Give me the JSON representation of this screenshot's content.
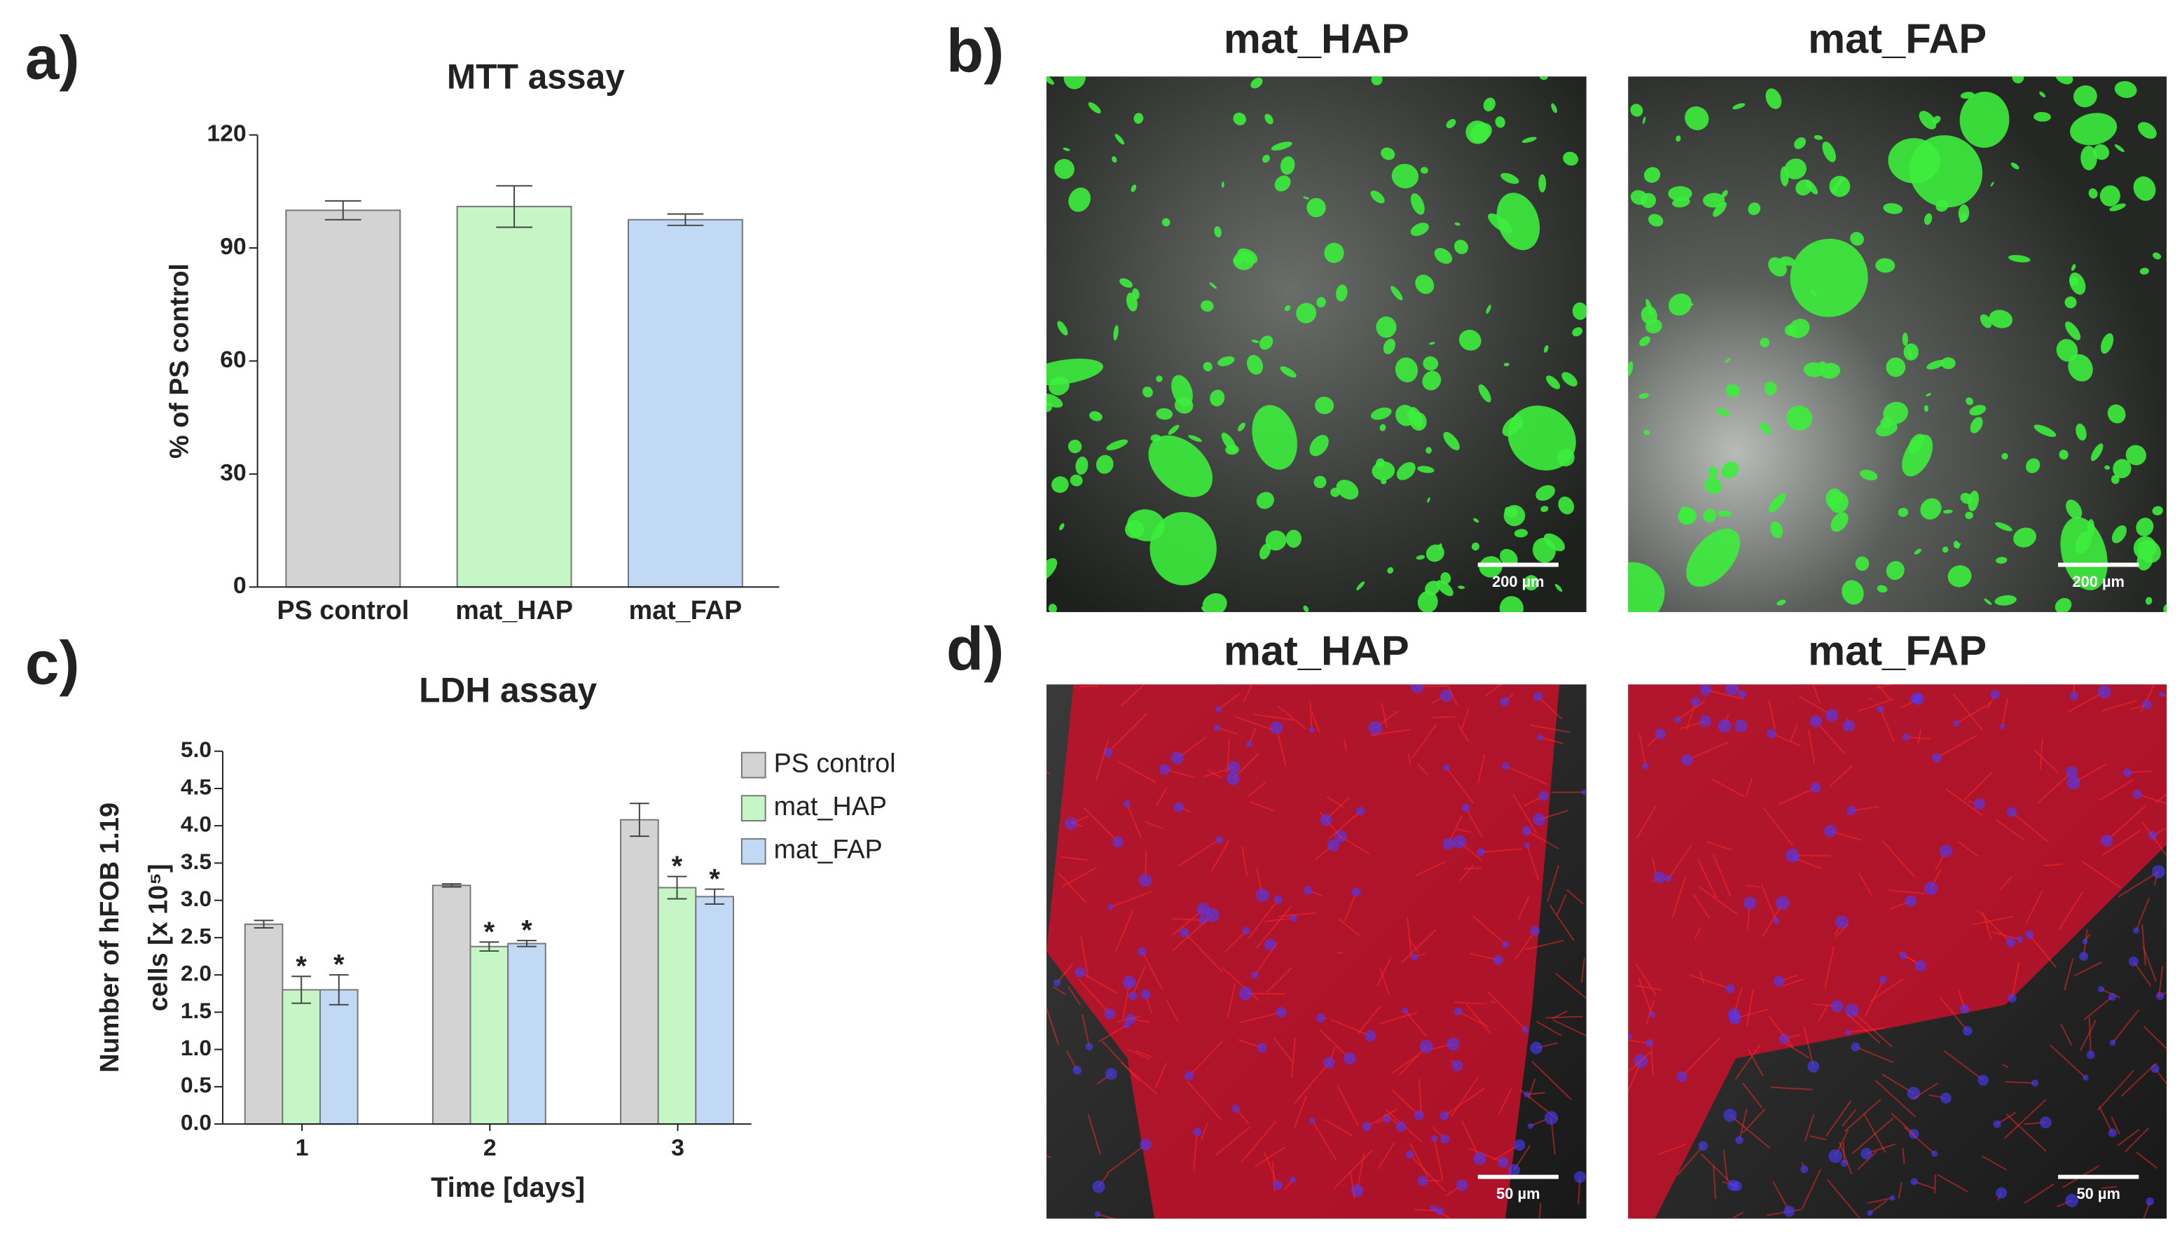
{
  "figure": {
    "panel_labels": [
      "a)",
      "b)",
      "c)",
      "d)"
    ],
    "micrographs": [
      {
        "title": "mat_HAP",
        "scale_bar": "200 µm"
      },
      {
        "title": "mat_FAP",
        "scale_bar": "200 µm"
      },
      {
        "title": "mat_HAP",
        "scale_bar": "50 µm"
      },
      {
        "title": "mat_FAP",
        "scale_bar": "50 µm"
      }
    ]
  },
  "chart_data": [
    {
      "type": "bar",
      "title": "MTT assay",
      "ylabel": "% of PS control",
      "categories": [
        "PS control",
        "mat_HAP",
        "mat_FAP"
      ],
      "values": [
        100,
        101,
        97.5
      ],
      "errors": [
        2.5,
        5.5,
        1.5
      ],
      "colors": [
        "#d3d3d3",
        "#c6f5c6",
        "#c2d9f5"
      ],
      "ylim": [
        0,
        120
      ],
      "yticks": [
        0,
        30,
        60,
        90,
        120
      ]
    },
    {
      "type": "grouped_bar",
      "title": "LDH assay",
      "ylabel": [
        "Number of hFOB 1.19",
        "cells [x 10⁵]"
      ],
      "xlabel": "Time [days]",
      "categories": [
        "1",
        "2",
        "3"
      ],
      "series": [
        {
          "name": "PS control",
          "color": "#d3d3d3",
          "values": [
            2.68,
            3.2,
            4.08
          ],
          "errors": [
            0.05,
            0.02,
            0.22
          ]
        },
        {
          "name": "mat_HAP",
          "color": "#c6f5c6",
          "values": [
            1.8,
            2.38,
            3.17
          ],
          "errors": [
            0.18,
            0.06,
            0.15
          ],
          "annotation": "*"
        },
        {
          "name": "mat_FAP",
          "color": "#c2d9f5",
          "values": [
            1.8,
            2.42,
            3.05
          ],
          "errors": [
            0.2,
            0.04,
            0.1
          ],
          "annotation": "*"
        }
      ],
      "ylim": [
        0,
        5
      ],
      "yticks": [
        {
          "value": 0,
          "label": "0.0"
        },
        {
          "value": 0.5,
          "label": "0.5"
        },
        {
          "value": 1,
          "label": "1.0"
        },
        {
          "value": 1.5,
          "label": "1.5"
        },
        {
          "value": 2,
          "label": "2.0"
        },
        {
          "value": 2.5,
          "label": "2.5"
        },
        {
          "value": 3,
          "label": "3.0"
        },
        {
          "value": 3.5,
          "label": "3.5"
        },
        {
          "value": 4,
          "label": "4.0"
        },
        {
          "value": 4.5,
          "label": "4.5"
        },
        {
          "value": 5,
          "label": "5.0"
        }
      ],
      "legend": "upper right"
    }
  ]
}
